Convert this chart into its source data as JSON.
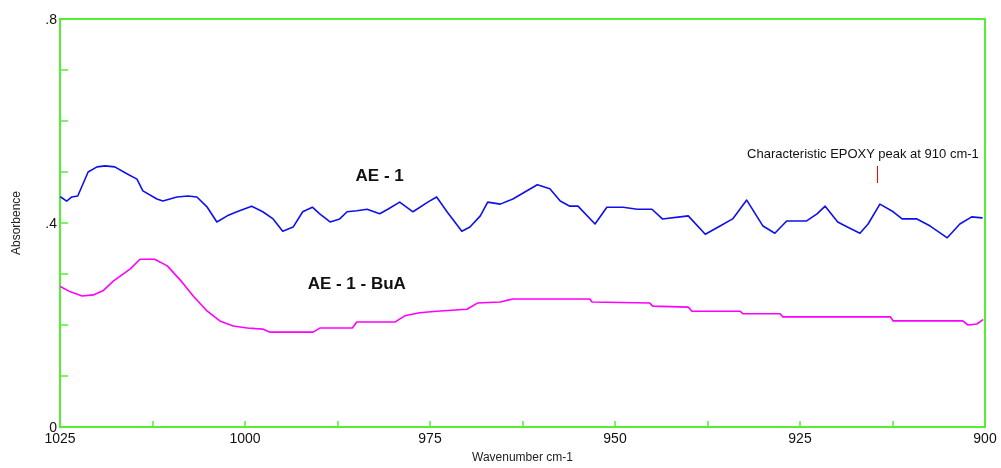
{
  "chart_data": {
    "type": "line",
    "xlabel": "Wavenumber cm-1",
    "ylabel": "Absorbence",
    "xlim": [
      1025,
      900
    ],
    "ylim": [
      0,
      0.8
    ],
    "xticks": [
      1025,
      {
        "value": 1012.5,
        "label": null
      },
      1000,
      {
        "value": 987.5,
        "label": null
      },
      975,
      {
        "value": 962.5,
        "label": null
      },
      950,
      {
        "value": 937.5,
        "label": null
      },
      925,
      {
        "value": 912.5,
        "label": null
      },
      900
    ],
    "yticks": [
      {
        "value": 0,
        "label": "0"
      },
      {
        "value": 0.1,
        "label": null
      },
      {
        "value": 0.2,
        "label": null
      },
      {
        "value": 0.3,
        "label": null
      },
      {
        "value": 0.4,
        "label": ".4"
      },
      {
        "value": 0.5,
        "label": null
      },
      {
        "value": 0.6,
        "label": null
      },
      {
        "value": 0.7,
        "label": null
      },
      {
        "value": 0.8,
        "label": ".8"
      }
    ],
    "grid": false,
    "legend": false,
    "marker": "none",
    "line_style": "solid",
    "annotations": [
      "Characteristic EPOXY peak at 910 cm-1"
    ],
    "series": [
      {
        "name": "AE - 1",
        "color": "#1010e8",
        "x": [
          1024.9,
          1024.1,
          1023.4,
          1022.6,
          1021.2,
          1020.0,
          1018.9,
          1017.6,
          1015.9,
          1014.6,
          1013.8,
          1011.9,
          1011.1,
          1009.2,
          1007.7,
          1006.5,
          1005.1,
          1003.8,
          1002.4,
          1001.1,
          999.1,
          997.6,
          996.2,
          994.9,
          993.5,
          992.2,
          990.9,
          989.9,
          988.5,
          987.2,
          986.2,
          984.9,
          983.5,
          981.8,
          980.7,
          979.1,
          977.3,
          975.3,
          974.1,
          972.7,
          970.7,
          969.6,
          968.2,
          967.2,
          965.5,
          963.8,
          960.5,
          958.8,
          957.4,
          956.1,
          955.0,
          952.7,
          951.1,
          948.9,
          947.0,
          945.0,
          943.6,
          941.2,
          940.1,
          937.8,
          935.8,
          934.1,
          932.2,
          930.0,
          928.4,
          926.8,
          924.1,
          922.7,
          921.6,
          919.9,
          918.6,
          916.9,
          915.8,
          914.2,
          912.4,
          911.2,
          909.2,
          907.4,
          905.1,
          903.4,
          901.8,
          900.4
        ],
        "values": [
          0.451,
          0.443,
          0.451,
          0.453,
          0.5,
          0.51,
          0.512,
          0.51,
          0.496,
          0.486,
          0.463,
          0.447,
          0.443,
          0.451,
          0.453,
          0.451,
          0.431,
          0.402,
          0.414,
          0.422,
          0.433,
          0.422,
          0.408,
          0.384,
          0.392,
          0.422,
          0.431,
          0.418,
          0.402,
          0.408,
          0.422,
          0.424,
          0.427,
          0.418,
          0.427,
          0.441,
          0.422,
          0.441,
          0.451,
          0.422,
          0.384,
          0.392,
          0.414,
          0.441,
          0.437,
          0.447,
          0.475,
          0.467,
          0.443,
          0.433,
          0.433,
          0.398,
          0.431,
          0.431,
          0.427,
          0.427,
          0.408,
          0.412,
          0.414,
          0.378,
          0.394,
          0.408,
          0.445,
          0.394,
          0.38,
          0.404,
          0.404,
          0.418,
          0.433,
          0.402,
          0.392,
          0.38,
          0.398,
          0.437,
          0.422,
          0.408,
          0.408,
          0.394,
          0.371,
          0.398,
          0.412,
          0.41
        ]
      },
      {
        "name": "AE - 1 - BuA",
        "color": "#ff00ff",
        "x": [
          1024.9,
          1023.6,
          1022.0,
          1020.5,
          1019.2,
          1017.8,
          1015.5,
          1014.2,
          1012.2,
          1010.5,
          1008.5,
          1007.0,
          1005.1,
          1003.4,
          1001.6,
          999.7,
          997.6,
          996.6,
          990.8,
          989.9,
          985.5,
          984.9,
          979.7,
          978.4,
          976.4,
          974.1,
          970.0,
          968.6,
          965.5,
          963.8,
          953.4,
          953.1,
          945.3,
          944.9,
          940.1,
          939.6,
          933.1,
          932.7,
          927.7,
          927.3,
          912.8,
          912.4,
          903.0,
          902.3,
          901.1,
          900.3
        ],
        "values": [
          0.275,
          0.265,
          0.257,
          0.259,
          0.267,
          0.286,
          0.31,
          0.329,
          0.329,
          0.316,
          0.284,
          0.257,
          0.227,
          0.208,
          0.198,
          0.194,
          0.192,
          0.186,
          0.186,
          0.194,
          0.194,
          0.206,
          0.206,
          0.218,
          0.224,
          0.227,
          0.231,
          0.243,
          0.245,
          0.251,
          0.251,
          0.245,
          0.243,
          0.237,
          0.235,
          0.227,
          0.227,
          0.222,
          0.222,
          0.216,
          0.216,
          0.208,
          0.208,
          0.2,
          0.202,
          0.21
        ]
      }
    ]
  }
}
